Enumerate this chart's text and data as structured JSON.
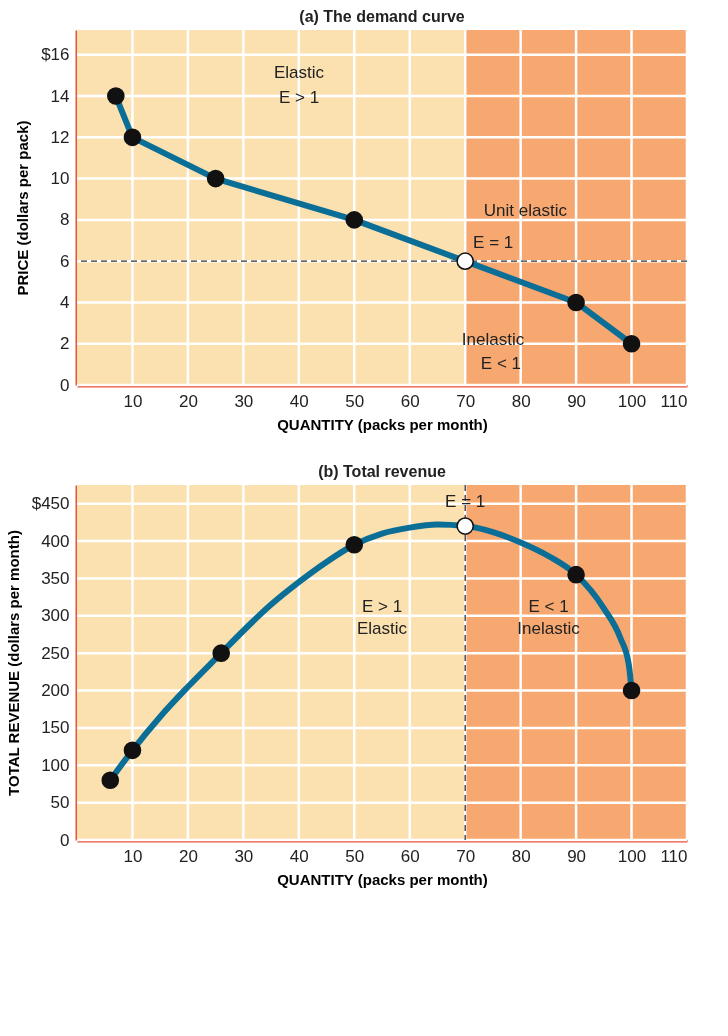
{
  "chart_data": [
    {
      "type": "line",
      "title": "(a) The demand curve",
      "xlabel": "QUANTITY (packs per month)",
      "ylabel": "PRICE (dollars per pack)",
      "xlim": [
        0,
        110
      ],
      "xticks": [
        10,
        20,
        30,
        40,
        50,
        60,
        70,
        80,
        90,
        100,
        110
      ],
      "ylim": [
        0,
        17.2
      ],
      "yticks": [
        0,
        2,
        4,
        6,
        8,
        10,
        12,
        14,
        {
          "value": 16,
          "label": "$16"
        }
      ],
      "grid": true,
      "bands": [
        {
          "axis": "x",
          "from": 0,
          "to": 70,
          "color": "#fbe0b0"
        },
        {
          "axis": "x",
          "from": 70,
          "to": 110,
          "color": "#f6a870"
        }
      ],
      "ref_lines": [
        {
          "axis": "y",
          "value": 6,
          "color": "#333333",
          "line_style": "dashed"
        }
      ],
      "series": [
        {
          "color": "#0a6e96",
          "x": [
            7,
            10,
            25,
            50,
            70,
            90,
            100
          ],
          "values": [
            14,
            12,
            10,
            8,
            6,
            4,
            2
          ]
        },
        {
          "type": "scatter",
          "marker": "circle",
          "x": [
            7,
            10,
            25,
            50,
            70,
            90,
            100
          ],
          "values": [
            14,
            12,
            10,
            8,
            6,
            4,
            2
          ],
          "colors": [
            "#111111",
            "#111111",
            "#111111",
            "#111111",
            "#ffffff",
            "#111111",
            "#111111"
          ]
        }
      ],
      "annotations": [
        "Elastic",
        "E > 1",
        "Unit elastic",
        {
          "text": "E = 1",
          "x": 70,
          "y": 6
        },
        "Inelastic",
        "E < 1"
      ]
    },
    {
      "type": "line",
      "title": "(b) Total revenue",
      "xlabel": "QUANTITY (packs per month)",
      "ylabel": "TOTAL REVENUE (dollars per month)",
      "xlim": [
        0,
        110
      ],
      "xticks": [
        10,
        20,
        30,
        40,
        50,
        60,
        70,
        80,
        90,
        100,
        110
      ],
      "ylim": [
        0,
        475
      ],
      "yticks": [
        0,
        50,
        100,
        150,
        200,
        250,
        300,
        350,
        400,
        {
          "value": 450,
          "label": "$450"
        }
      ],
      "grid": true,
      "bands": [
        {
          "axis": "x",
          "from": 0,
          "to": 70,
          "color": "#fbe0b0"
        },
        {
          "axis": "x",
          "from": 70,
          "to": 110,
          "color": "#f6a870"
        }
      ],
      "ref_lines": [
        {
          "axis": "x",
          "value": 70,
          "color": "#333333",
          "line_style": "dashed"
        }
      ],
      "series": [
        {
          "color": "#0a6e96",
          "x": [
            6,
            10,
            15,
            20,
            26,
            30,
            35,
            40,
            45,
            50,
            55,
            60,
            65,
            70,
            75,
            80,
            85,
            90,
            95,
            98,
            99.5,
            100
          ],
          "values": [
            80,
            120,
            165,
            205,
            250,
            280,
            315,
            345,
            372,
            395,
            410,
            418,
            422,
            420,
            412,
            398,
            380,
            355,
            310,
            270,
            235,
            200
          ]
        },
        {
          "type": "scatter",
          "marker": "circle",
          "x": [
            6,
            10,
            26,
            50,
            70,
            90,
            100
          ],
          "values": [
            80,
            120,
            250,
            395,
            420,
            355,
            200
          ],
          "colors": [
            "#111111",
            "#111111",
            "#111111",
            "#111111",
            "#ffffff",
            "#111111",
            "#111111"
          ]
        }
      ],
      "annotations": [
        {
          "text": "E = 1",
          "x": 70,
          "y": 420
        },
        "E > 1",
        "Elastic",
        "E < 1",
        "Inelastic"
      ]
    }
  ]
}
